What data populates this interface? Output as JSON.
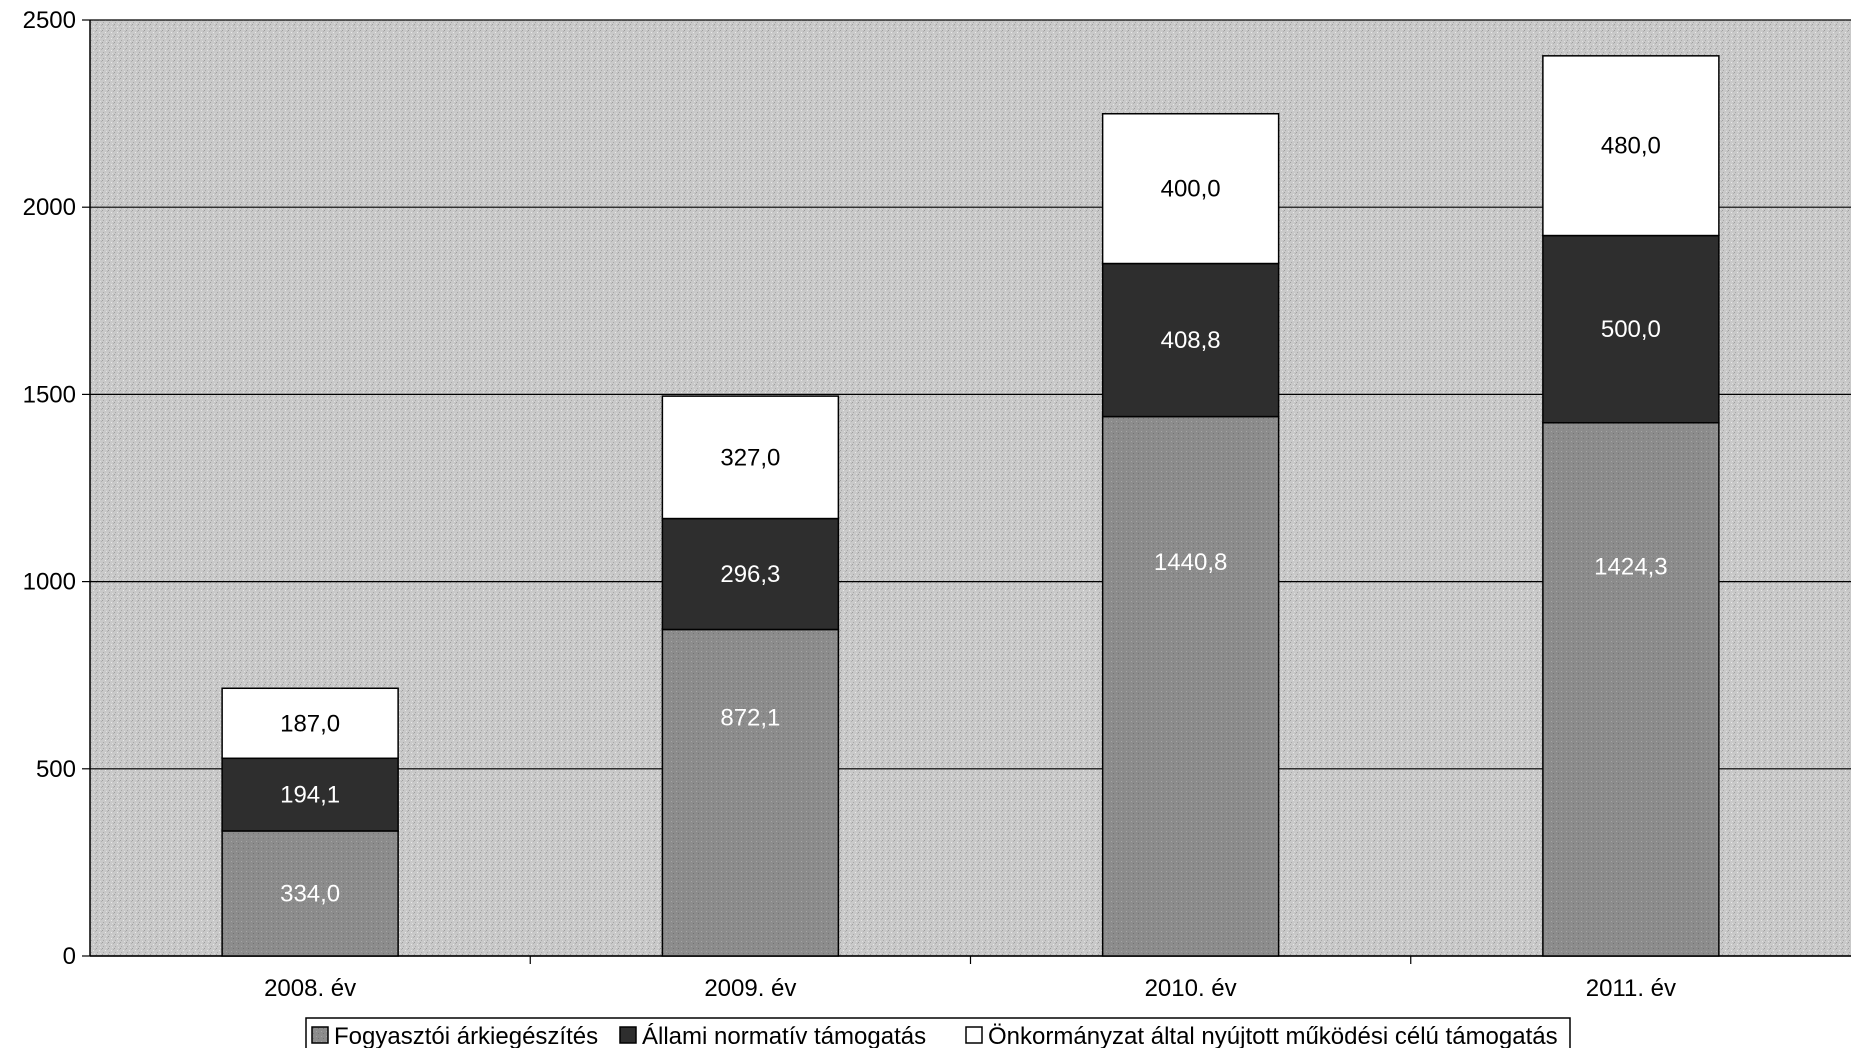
{
  "chart_data": {
    "type": "bar",
    "stacked": true,
    "categories": [
      "2008. év",
      "2009. év",
      "2010. év",
      "2011. év"
    ],
    "series": [
      {
        "name": "Fogyasztói árkiegészítés",
        "values": [
          334.0,
          872.1,
          1440.8,
          1424.3
        ],
        "labels": [
          "334,0",
          "872,1",
          "1440,8",
          "1424,3"
        ],
        "color": "#8c8c8c",
        "label_color": "#ffffff"
      },
      {
        "name": "Állami normatív támogatás",
        "values": [
          194.1,
          296.3,
          408.8,
          500.0
        ],
        "labels": [
          "194,1",
          "296,3",
          "408,8",
          "500,0"
        ],
        "color": "#2e2e2e",
        "label_color": "#ffffff"
      },
      {
        "name": "Önkormányzat által nyújtott működési célú támogatás",
        "values": [
          187.0,
          327.0,
          400.0,
          480.0
        ],
        "labels": [
          "187,0",
          "327,0",
          "400,0",
          "480,0"
        ],
        "color": "#ffffff",
        "label_color": "#000000"
      }
    ],
    "yticks": [
      "0",
      "500",
      "1000",
      "1500",
      "2000",
      "2500"
    ],
    "ylim": [
      0,
      2500
    ],
    "grid": true,
    "legend": "bottom",
    "plot_bg": "#c8c8c8"
  }
}
